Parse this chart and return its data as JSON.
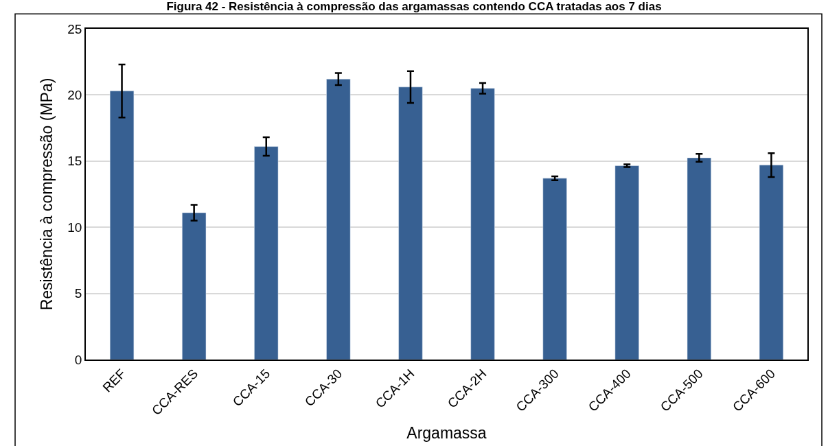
{
  "chart_data": {
    "type": "bar",
    "title": "Figura 42 - Resistência à compressão das argamassas contendo CCA tratadas aos 7 dias",
    "xlabel": "Argamassa",
    "ylabel": "Resistência à compressão (MPa)",
    "categories": [
      "REF",
      "CCA-RES",
      "CCA-15",
      "CCA-30",
      "CCA-1H",
      "CCA-2H",
      "CCA-300",
      "CCA-400",
      "CCA-500",
      "CCA-600"
    ],
    "values": [
      20.3,
      11.1,
      16.1,
      21.2,
      20.6,
      20.5,
      13.7,
      14.65,
      15.25,
      14.7
    ],
    "errors": [
      2.0,
      0.6,
      0.7,
      0.45,
      1.2,
      0.4,
      0.15,
      0.1,
      0.3,
      0.9
    ],
    "color": "#376092",
    "ylim": [
      0,
      25
    ],
    "yticks": [
      0,
      5,
      10,
      15,
      20,
      25
    ],
    "grid": "y"
  }
}
